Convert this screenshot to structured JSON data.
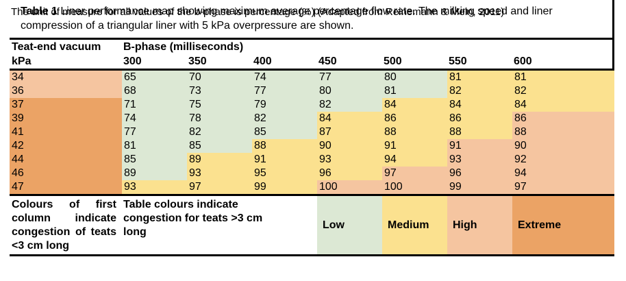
{
  "title": {
    "label": "Table 1",
    "text": " Liner performance map showing maximum average percentage flow rate. The milking speed and liner compression of a triangular liner with 5 kPa overpressure are shown."
  },
  "table": {
    "row_header": "Teat-end vacuum",
    "row_header_unit": "kPa",
    "col_group_header": "B-phase (milliseconds)",
    "columns": [
      "300",
      "350",
      "400",
      "450",
      "500",
      "550",
      "600"
    ],
    "rows": [
      {
        "kpa": "34",
        "kpa_level": "high",
        "values": [
          "65",
          "70",
          "74",
          "77",
          "80",
          "81",
          "81"
        ],
        "levels": [
          "low",
          "low",
          "low",
          "low",
          "low",
          "medium",
          "medium"
        ]
      },
      {
        "kpa": "36",
        "kpa_level": "high",
        "values": [
          "68",
          "73",
          "77",
          "80",
          "81",
          "82",
          "82"
        ],
        "levels": [
          "low",
          "low",
          "low",
          "low",
          "low",
          "medium",
          "medium"
        ]
      },
      {
        "kpa": "37",
        "kpa_level": "extreme",
        "values": [
          "71",
          "75",
          "79",
          "82",
          "84",
          "84",
          "84"
        ],
        "levels": [
          "low",
          "low",
          "low",
          "low",
          "medium",
          "medium",
          "medium"
        ]
      },
      {
        "kpa": "39",
        "kpa_level": "extreme",
        "values": [
          "74",
          "78",
          "82",
          "84",
          "86",
          "86",
          "86"
        ],
        "levels": [
          "low",
          "low",
          "low",
          "medium",
          "medium",
          "medium",
          "high"
        ]
      },
      {
        "kpa": "41",
        "kpa_level": "extreme",
        "values": [
          "77",
          "82",
          "85",
          "87",
          "88",
          "88",
          "88"
        ],
        "levels": [
          "low",
          "low",
          "low",
          "medium",
          "medium",
          "medium",
          "high"
        ]
      },
      {
        "kpa": "42",
        "kpa_level": "extreme",
        "values": [
          "81",
          "85",
          "88",
          "90",
          "91",
          "91",
          "90"
        ],
        "levels": [
          "low",
          "low",
          "medium",
          "medium",
          "medium",
          "high",
          "high"
        ]
      },
      {
        "kpa": "44",
        "kpa_level": "extreme",
        "values": [
          "85",
          "89",
          "91",
          "93",
          "94",
          "93",
          "92"
        ],
        "levels": [
          "low",
          "medium",
          "medium",
          "medium",
          "medium",
          "high",
          "high"
        ]
      },
      {
        "kpa": "46",
        "kpa_level": "extreme",
        "values": [
          "89",
          "93",
          "95",
          "96",
          "97",
          "96",
          "94"
        ],
        "levels": [
          "low",
          "medium",
          "medium",
          "medium",
          "high",
          "high",
          "high"
        ]
      },
      {
        "kpa": "47",
        "kpa_level": "extreme",
        "values": [
          "93",
          "97",
          "99",
          "100",
          "100",
          "99",
          "97"
        ],
        "levels": [
          "medium",
          "medium",
          "medium",
          "high",
          "high",
          "high",
          "high"
        ]
      }
    ]
  },
  "legend": {
    "first_col_note": "Colours of first column indicate congestion of teats <3 cm long",
    "table_note": "Table colours indicate congestion for teats >3 cm long",
    "items": [
      {
        "label": "Low",
        "level": "low"
      },
      {
        "label": "Medium",
        "level": "medium"
      },
      {
        "label": "High",
        "level": "high"
      },
      {
        "label": "Extreme",
        "level": "extreme"
      }
    ]
  },
  "footer": "The unit of measure for all values of the b-phase is percentage (%) (Adapted from Reinemann & Mein, 2011)",
  "colors": {
    "low": "#dce8d4",
    "medium": "#fbe18f",
    "high": "#f5c5a0",
    "extreme": "#eba365"
  }
}
